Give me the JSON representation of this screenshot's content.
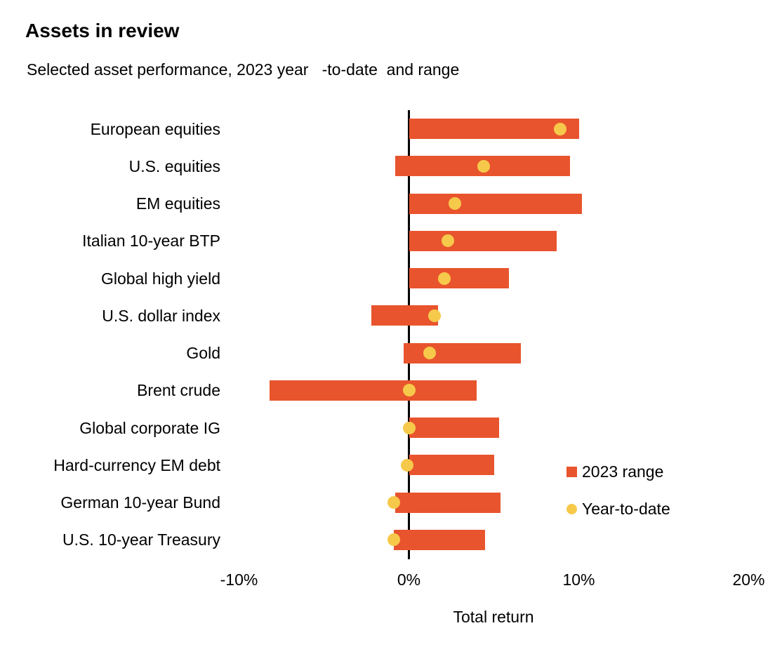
{
  "page": {
    "title": "Assets in review",
    "subtitle": "Selected asset performance, 2023 year   -to-date  and range"
  },
  "colors": {
    "range_bar": "#E8542D",
    "ytd_dot": "#F6C94B",
    "axis": "#000000",
    "text": "#000000"
  },
  "legend": {
    "range_label": "2023 range",
    "ytd_label": "Year-to-date"
  },
  "chart_data": {
    "type": "bar",
    "subtype": "horizontal-range-bar-with-dots",
    "title": "Assets in review",
    "subtitle": "Selected asset performance, 2023 year-to-date and range",
    "xlabel": "Total return",
    "x_unit": "%",
    "xlim": [
      -10,
      20
    ],
    "grid": false,
    "legend_position": "right-middle",
    "x_ticks": [
      {
        "value": -10,
        "label": "-10%"
      },
      {
        "value": 0,
        "label": "0%"
      },
      {
        "value": 10,
        "label": "10%"
      },
      {
        "value": 20,
        "label": "20%"
      }
    ],
    "series": [
      {
        "name": "2023 range",
        "marker": "square",
        "role": "range"
      },
      {
        "name": "Year-to-date",
        "marker": "circle",
        "role": "point"
      }
    ],
    "rows": [
      {
        "label": "European equities",
        "range": [
          0.0,
          10.0
        ],
        "ytd": 8.9
      },
      {
        "label": "U.S. equities",
        "range": [
          -0.8,
          9.5
        ],
        "ytd": 4.4
      },
      {
        "label": "EM equities",
        "range": [
          0.0,
          10.2
        ],
        "ytd": 2.7
      },
      {
        "label": "Italian 10-year BTP",
        "range": [
          0.0,
          8.7
        ],
        "ytd": 2.3
      },
      {
        "label": "Global high yield",
        "range": [
          0.0,
          5.9
        ],
        "ytd": 2.1
      },
      {
        "label": "U.S. dollar index",
        "range": [
          -2.2,
          1.7
        ],
        "ytd": 1.5
      },
      {
        "label": "Gold",
        "range": [
          -0.3,
          6.6
        ],
        "ytd": 1.2
      },
      {
        "label": "Brent crude",
        "range": [
          -8.2,
          4.0
        ],
        "ytd": 0.0
      },
      {
        "label": "Global corporate IG",
        "range": [
          0.0,
          5.3
        ],
        "ytd": 0.0
      },
      {
        "label": "Hard-currency EM debt",
        "range": [
          0.0,
          5.0
        ],
        "ytd": -0.1
      },
      {
        "label": "German 10-year Bund",
        "range": [
          -0.8,
          5.4
        ],
        "ytd": -0.9
      },
      {
        "label": "U.S. 10-year Treasury",
        "range": [
          -0.9,
          4.5
        ],
        "ytd": -0.9
      }
    ]
  }
}
